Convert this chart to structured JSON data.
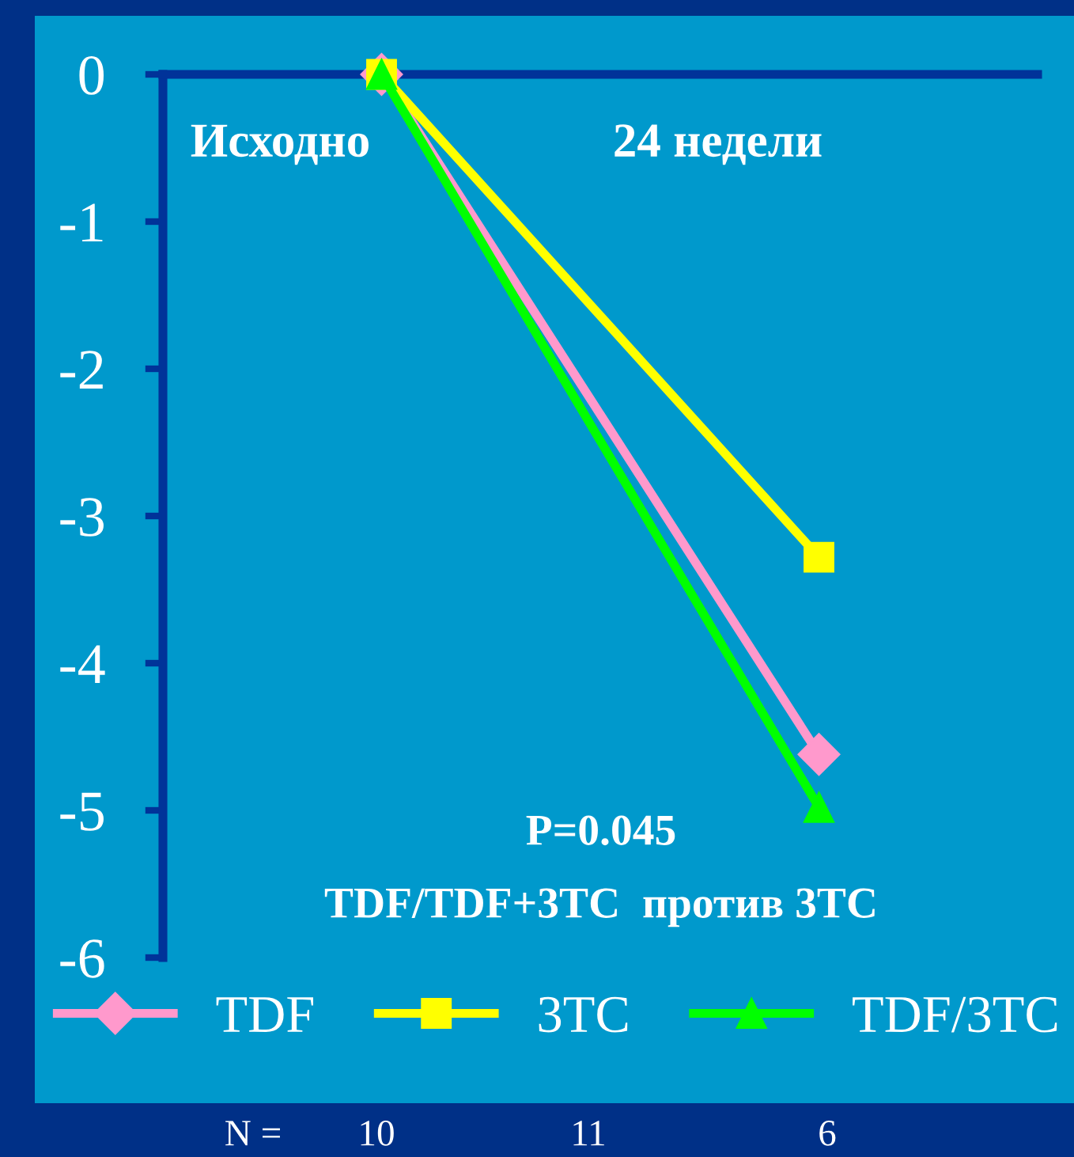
{
  "chart_data": {
    "type": "line",
    "categories": [
      "Исходно",
      "24 недели"
    ],
    "series": [
      {
        "name": "TDF",
        "color": "#ff99cc",
        "marker": "diamond",
        "values": [
          0,
          -4.62
        ]
      },
      {
        "name": "3TC",
        "color": "#ffff00",
        "marker": "square",
        "values": [
          0,
          -3.28
        ]
      },
      {
        "name": "TDF/3TC",
        "color": "#00ff00",
        "marker": "triangle",
        "values": [
          0,
          -4.98
        ]
      }
    ],
    "ylim": [
      -6,
      0
    ],
    "yticks": [
      0,
      -1,
      -2,
      -3,
      -4,
      -5,
      -6
    ],
    "grid": false,
    "legend": "bottom",
    "line_style": "solid",
    "annotations": [
      "P=0.045",
      "TDF/TDF+3TC  против 3TC",
      "N =",
      "10",
      "11",
      "6"
    ]
  }
}
